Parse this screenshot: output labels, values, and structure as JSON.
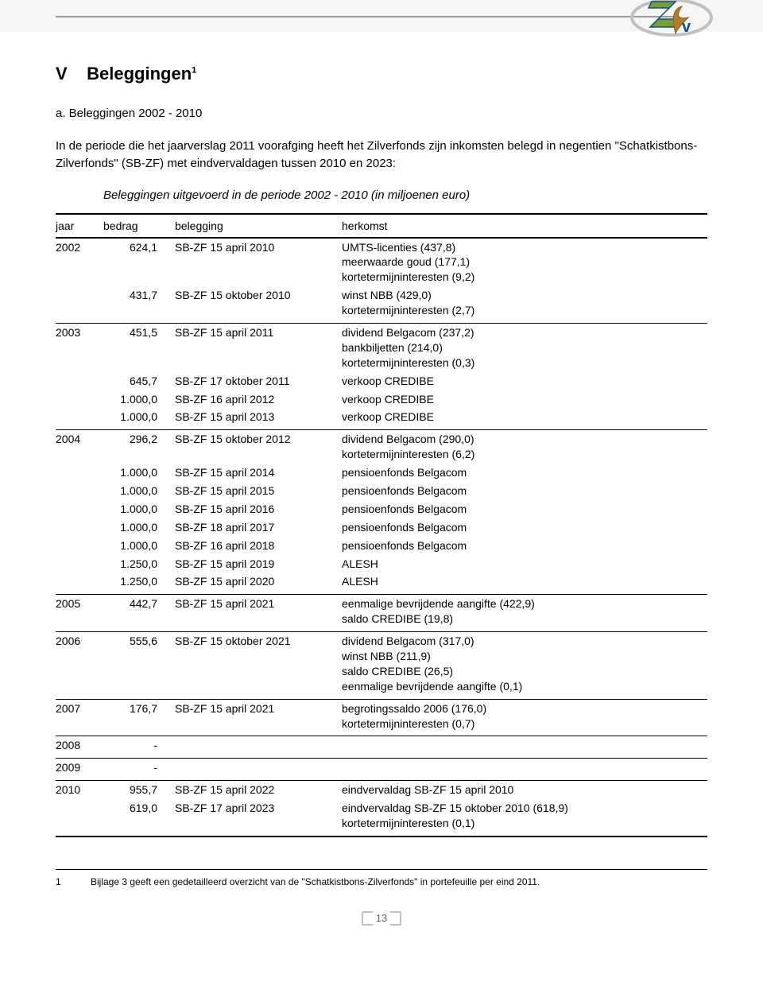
{
  "heading_v": "V",
  "heading_text": "Beleggingen",
  "heading_sup": "1",
  "sub_heading": "a.   Beleggingen 2002 - 2010",
  "intro_para": "In de periode die het jaarverslag 2011 voorafging heeft het Zilverfonds zijn inkomsten belegd in negentien \"Schatkistbons-Zilverfonds\" (SB-ZF) met eindvervaldagen tussen 2010 en 2023:",
  "italic_title": "Beleggingen uitgevoerd in de periode 2002 - 2010  (in miljoenen euro)",
  "headers": {
    "jaar": "jaar",
    "bedrag": "bedrag",
    "belegging": "belegging",
    "herkomst": "herkomst"
  },
  "groups": [
    {
      "rows": [
        {
          "jaar": "2002",
          "bedrag": "624,1",
          "belegging": "SB-ZF 15 april 2010",
          "herkomst": "UMTS-licenties (437,8)\nmeerwaarde goud (177,1)\nkortetermijninteresten (9,2)"
        },
        {
          "jaar": "",
          "bedrag": "431,7",
          "belegging": "SB-ZF 15 oktober 2010",
          "herkomst": "winst NBB (429,0)\nkortetermijninteresten (2,7)"
        }
      ]
    },
    {
      "rows": [
        {
          "jaar": "2003",
          "bedrag": "451,5",
          "belegging": "SB-ZF 15 april 2011",
          "herkomst": "dividend Belgacom (237,2)\nbankbiljetten (214,0)\nkortetermijninteresten (0,3)"
        },
        {
          "jaar": "",
          "bedrag": "645,7",
          "belegging": "SB-ZF 17 oktober 2011",
          "herkomst": "verkoop CREDIBE"
        },
        {
          "jaar": "",
          "bedrag": "1.000,0",
          "belegging": "SB-ZF 16 april 2012",
          "herkomst": "verkoop CREDIBE"
        },
        {
          "jaar": "",
          "bedrag": "1.000,0",
          "belegging": "SB-ZF 15 april 2013",
          "herkomst": "verkoop CREDIBE"
        }
      ]
    },
    {
      "rows": [
        {
          "jaar": "2004",
          "bedrag": "296,2",
          "belegging": "SB-ZF 15 oktober 2012",
          "herkomst": "dividend Belgacom (290,0)\nkortetermijninteresten (6,2)"
        },
        {
          "jaar": "",
          "bedrag": "1.000,0",
          "belegging": "SB-ZF 15 april 2014",
          "herkomst": "pensioenfonds Belgacom"
        },
        {
          "jaar": "",
          "bedrag": "1.000,0",
          "belegging": "SB-ZF 15 april 2015",
          "herkomst": "pensioenfonds Belgacom"
        },
        {
          "jaar": "",
          "bedrag": "1.000,0",
          "belegging": "SB-ZF 15 april 2016",
          "herkomst": "pensioenfonds Belgacom"
        },
        {
          "jaar": "",
          "bedrag": "1.000,0",
          "belegging": "SB-ZF 18 april 2017",
          "herkomst": "pensioenfonds Belgacom"
        },
        {
          "jaar": "",
          "bedrag": "1.000,0",
          "belegging": "SB-ZF 16 april 2018",
          "herkomst": "pensioenfonds Belgacom"
        },
        {
          "jaar": "",
          "bedrag": "1.250,0",
          "belegging": "SB-ZF 15 april 2019",
          "herkomst": "ALESH"
        },
        {
          "jaar": "",
          "bedrag": "1.250,0",
          "belegging": "SB-ZF 15 april 2020",
          "herkomst": "ALESH"
        }
      ]
    },
    {
      "rows": [
        {
          "jaar": "2005",
          "bedrag": "442,7",
          "belegging": "SB-ZF 15 april 2021",
          "herkomst": "eenmalige bevrijdende aangifte (422,9)\nsaldo CREDIBE (19,8)"
        }
      ]
    },
    {
      "rows": [
        {
          "jaar": "2006",
          "bedrag": "555,6",
          "belegging": "SB-ZF 15 oktober 2021",
          "herkomst": "dividend Belgacom (317,0)\nwinst NBB (211,9)\nsaldo CREDIBE (26,5)\neenmalige bevrijdende aangifte (0,1)"
        }
      ]
    },
    {
      "rows": [
        {
          "jaar": "2007",
          "bedrag": "176,7",
          "belegging": "SB-ZF 15 april 2021",
          "herkomst": "begrotingssaldo 2006 (176,0)\nkortetermijninteresten (0,7)"
        }
      ]
    },
    {
      "rows": [
        {
          "jaar": "2008",
          "bedrag": "-",
          "belegging": "",
          "herkomst": ""
        }
      ]
    },
    {
      "rows": [
        {
          "jaar": "2009",
          "bedrag": "-",
          "belegging": "",
          "herkomst": ""
        }
      ]
    },
    {
      "rows": [
        {
          "jaar": "2010",
          "bedrag": "955,7",
          "belegging": "SB-ZF 15 april 2022",
          "herkomst": "eindvervaldag SB-ZF 15 april 2010"
        },
        {
          "jaar": "",
          "bedrag": "619,0",
          "belegging": "SB-ZF 17 april 2023",
          "herkomst": "eindvervaldag SB-ZF 15 oktober 2010 (618,9)\nkortetermijninteresten (0,1)"
        }
      ]
    }
  ],
  "footnote_num": "1",
  "footnote_text": "Bijlage 3 geeft een gedetailleerd overzicht van de \"Schatkistbons-Zilverfonds\" in portefeuille per eind 2011.",
  "page_number": "13",
  "logo_colors": {
    "zgreen": "#799d3a",
    "zblue": "#0a4f90",
    "outline": "#bfc0c1",
    "gold": "#b27b28",
    "gold_dark": "#8a5c1e"
  }
}
